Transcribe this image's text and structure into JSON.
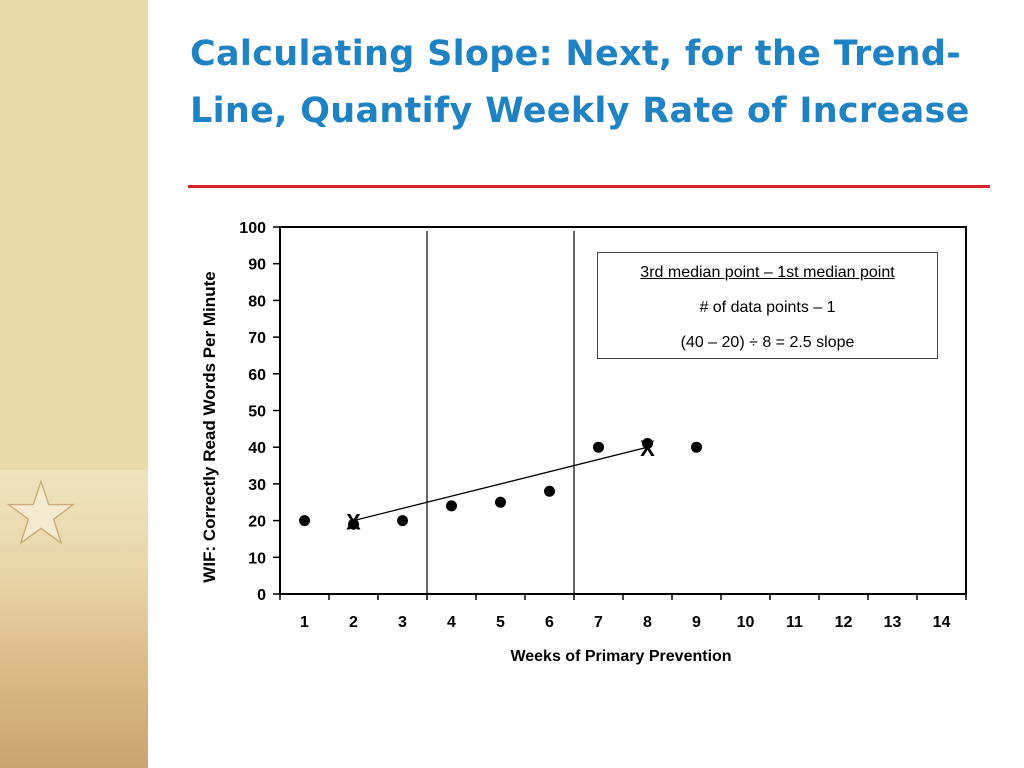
{
  "slide": {
    "title": "Calculating Slope: Next, for the Trend-Line, Quantify Weekly Rate of Increase"
  },
  "formula": {
    "line1": "3rd median point – 1st median point",
    "line2": "# of data points – 1",
    "line3": "(40 – 20) ÷ 8 = 2.5 slope"
  },
  "chart_data": {
    "type": "scatter",
    "title": "",
    "xlabel": "Weeks of Primary Prevention",
    "ylabel": "WIF: Correctly Read Words Per Minute",
    "xlim": [
      0.5,
      14.5
    ],
    "ylim": [
      0,
      100
    ],
    "x_ticks": [
      "1",
      "2",
      "3",
      "4",
      "5",
      "6",
      "7",
      "8",
      "9",
      "10",
      "11",
      "12",
      "13",
      "14"
    ],
    "y_ticks": [
      "0",
      "10",
      "20",
      "30",
      "40",
      "50",
      "60",
      "70",
      "80",
      "90",
      "100"
    ],
    "grid": false,
    "points": [
      {
        "x": 1,
        "y": 20
      },
      {
        "x": 2,
        "y": 19
      },
      {
        "x": 3,
        "y": 20
      },
      {
        "x": 4,
        "y": 24
      },
      {
        "x": 5,
        "y": 25
      },
      {
        "x": 6,
        "y": 28
      },
      {
        "x": 7,
        "y": 40
      },
      {
        "x": 8,
        "y": 41
      },
      {
        "x": 9,
        "y": 40
      }
    ],
    "phase_lines_x": [
      3.5,
      6.5
    ],
    "median_markers": [
      {
        "x": 2,
        "y": 20,
        "label": "X"
      },
      {
        "x": 8,
        "y": 40,
        "label": "X"
      }
    ],
    "trend_line": {
      "from": {
        "x": 2,
        "y": 20
      },
      "to": {
        "x": 8,
        "y": 40
      }
    },
    "colors": {
      "title": "#1e82c3",
      "rule": "#d8232a",
      "marks": "#000000"
    }
  }
}
